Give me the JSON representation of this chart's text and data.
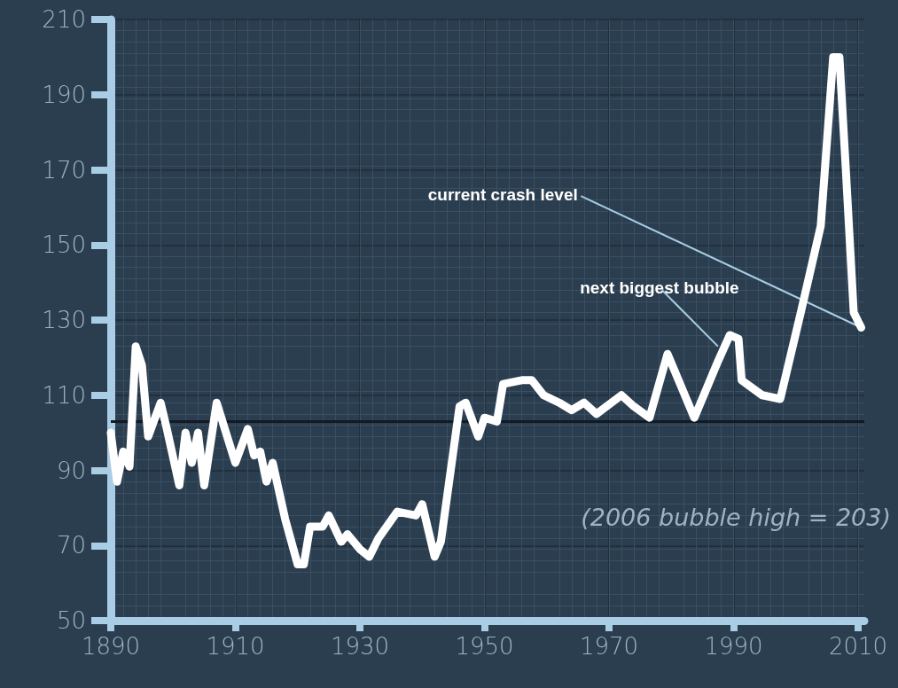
{
  "chart_data": {
    "type": "line",
    "x": [
      1890,
      1891,
      1892,
      1893,
      1894,
      1895,
      1896,
      1898,
      1899,
      1901,
      1902,
      1903,
      1904,
      1905,
      1907,
      1910,
      1912,
      1913,
      1914,
      1915,
      1916,
      1918,
      1920,
      1921,
      1922,
      1924,
      1925,
      1927,
      1928,
      1930,
      1931.5,
      1933,
      1936,
      1939,
      1940,
      1942,
      1943,
      1946,
      1947,
      1949,
      1950,
      1952,
      1953,
      1956,
      1957.6,
      1959.5,
      1962,
      1964,
      1966,
      1968,
      1972,
      1974,
      1976.5,
      1979.4,
      1983.7,
      1987.5,
      1989.4,
      1990.8,
      1991.3,
      1994.6,
      1997.5,
      2000.8,
      2004,
      2006,
      2007,
      2008,
      2009.3,
      2010.5
    ],
    "series": [
      {
        "color": "#ffffff",
        "values": [
          100,
          87,
          95,
          91,
          123,
          118,
          99,
          108,
          101,
          86,
          100,
          92,
          100,
          86,
          108,
          92,
          101,
          94,
          95,
          87,
          92,
          77,
          65,
          65,
          75,
          75,
          78,
          71,
          73,
          69,
          67,
          72,
          79,
          78,
          81,
          67,
          71,
          107,
          108,
          99,
          104,
          103,
          113,
          114,
          114,
          110,
          108,
          106,
          108,
          105,
          110,
          107,
          104,
          121,
          104,
          119,
          126,
          125,
          114,
          110,
          109,
          132,
          155,
          200,
          200,
          171,
          132,
          128
        ]
      }
    ],
    "xlim": [
      1890,
      2011
    ],
    "xticks": [
      1890,
      1910,
      1930,
      1950,
      1970,
      1990,
      2010
    ],
    "ylim": [
      50,
      210
    ],
    "yticks": [
      50,
      70,
      90,
      110,
      130,
      150,
      170,
      190,
      210
    ],
    "grid": true,
    "line_style": "solid",
    "ref_lines": [
      {
        "axis": "y",
        "value": 103,
        "color": "#111a24"
      }
    ],
    "annotations": [
      {
        "text": "current crash level",
        "x": 2010.5,
        "y": 128
      },
      {
        "text": "next biggest bubble",
        "x": 1987.5,
        "y": 123
      },
      "(2006 bubble high = 203)"
    ]
  }
}
